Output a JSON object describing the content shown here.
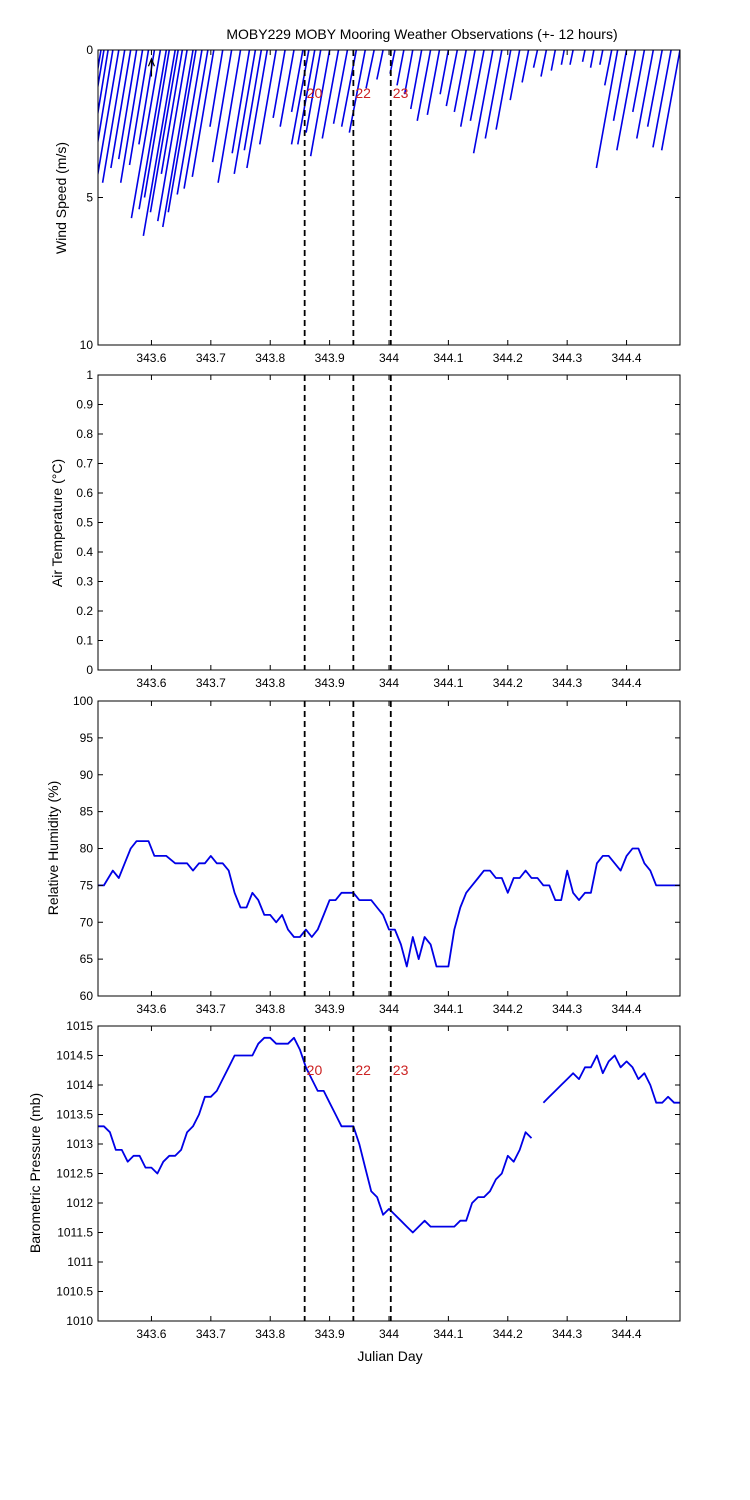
{
  "figure": {
    "title": "MOBY229 MOBY Mooring Weather Observations (+- 12 hours)",
    "marker_color": "#cc2222",
    "line_color": "#0000e6"
  },
  "chart_data": [
    {
      "type": "line",
      "title": "MOBY229 MOBY Mooring Weather Observations (+- 12 hours)",
      "plot_style": "wind-vector-sticks",
      "ylabel": "Wind Speed (m/s)",
      "xlabel": "",
      "xlim": [
        343.51,
        344.49
      ],
      "ylim": [
        0,
        10
      ],
      "y_reversed": true,
      "xticks": [
        "343.6",
        "343.7",
        "343.8",
        "343.9",
        "344",
        "344.1",
        "344.2",
        "344.3",
        "344.4"
      ],
      "yticks": [
        "0",
        "5",
        "10"
      ],
      "vertical_markers": [
        {
          "x": 343.858,
          "label": "20",
          "show_label": true
        },
        {
          "x": 343.94,
          "label": "22",
          "show_label": true
        },
        {
          "x": 344.003,
          "label": "23",
          "show_label": true
        }
      ],
      "series": [
        {
          "x": [
            343.515,
            343.52,
            343.527,
            343.535,
            343.545,
            343.555,
            343.565,
            343.575,
            343.585,
            343.595,
            343.605,
            343.615,
            343.625,
            343.63,
            343.64,
            343.645,
            343.652,
            343.66,
            343.67,
            343.675,
            343.685,
            343.695,
            343.705,
            343.72,
            343.735,
            343.75,
            343.765,
            343.775,
            343.785,
            343.795,
            343.81,
            343.825,
            343.84,
            343.855,
            343.865,
            343.875,
            343.885,
            343.9,
            343.915,
            343.93,
            343.945,
            343.96,
            343.975,
            343.99,
            344.01,
            344.025,
            344.04,
            344.055,
            344.07,
            344.085,
            344.1,
            344.115,
            344.13,
            344.145,
            344.16,
            344.175,
            344.19,
            344.205,
            344.22,
            344.235,
            344.25,
            344.265,
            344.28,
            344.295,
            344.31,
            344.33,
            344.345,
            344.36,
            344.375,
            344.385,
            344.4,
            344.415,
            344.43,
            344.445,
            344.46,
            344.475,
            344.49
          ],
          "u": [
            0.06,
            0.05,
            0.07,
            0.06,
            0.05,
            0.06,
            0.05,
            0.06,
            0.07,
            0.06,
            0.05,
            0.045,
            0.05,
            0.06,
            0.055,
            0.05,
            0.045,
            0.05,
            0.055,
            0.05,
            0.045,
            0.04,
            0.045,
            0.035,
            0.04,
            0.05,
            0.045,
            0.04,
            0.035,
            0.03,
            0.02,
            0.01,
            0.0,
            -0.005,
            -0.01,
            0.0,
            0.01,
            0.005,
            -0.01,
            -0.02,
            -0.03,
            -0.035,
            -0.04,
            -0.03,
            -0.02,
            -0.015,
            -0.005,
            -0.01,
            -0.02,
            -0.015,
            -0.01,
            -0.03,
            -0.025,
            -0.02,
            -0.03,
            -0.025,
            -0.02,
            -0.01,
            -0.015,
            -0.02,
            -0.025,
            -0.02,
            -0.01,
            -0.005,
            -0.015,
            -0.01,
            -0.005,
            -0.01,
            -0.02,
            0.0,
            -0.01,
            -0.02,
            -0.015,
            -0.02,
            -0.025,
            -0.02,
            -0.01
          ],
          "v": [
            4.6,
            4.3,
            4.1,
            3.8,
            4.6,
            4.5,
            4.0,
            3.7,
            4.5,
            3.9,
            3.2,
            5.7,
            5.4,
            5.0,
            6.3,
            5.5,
            4.2,
            5.8,
            6.0,
            5.5,
            4.9,
            4.7,
            4.3,
            2.6,
            3.8,
            4.5,
            3.5,
            4.2,
            3.4,
            4.0,
            3.2,
            2.3,
            2.6,
            2.1,
            3.2,
            3.2,
            2.8,
            3.6,
            3.0,
            2.5,
            2.6,
            2.8,
            1.3,
            1.0,
            0.8,
            1.2,
            1.5,
            2.0,
            2.4,
            2.2,
            1.5,
            1.9,
            2.1,
            2.6,
            2.4,
            3.5,
            3.0,
            2.7,
            1.7,
            1.1,
            0.6,
            0.9,
            0.7,
            0.5,
            0.5,
            0.4,
            0.6,
            0.5,
            1.2,
            4.0,
            2.4,
            3.4,
            2.1,
            3.0,
            2.6,
            3.3,
            3.4
          ]
        }
      ]
    },
    {
      "type": "line",
      "ylabel": "Air Temperature (°C)",
      "xlabel": "",
      "xlim": [
        343.51,
        344.49
      ],
      "ylim": [
        0,
        1
      ],
      "xticks": [
        "343.6",
        "343.7",
        "343.8",
        "343.9",
        "344",
        "344.1",
        "344.2",
        "344.3",
        "344.4"
      ],
      "yticks": [
        "0",
        "0.1",
        "0.2",
        "0.3",
        "0.4",
        "0.5",
        "0.6",
        "0.7",
        "0.8",
        "0.9",
        "1"
      ],
      "vertical_markers": [
        {
          "x": 343.858,
          "label": "",
          "show_label": false
        },
        {
          "x": 343.94,
          "label": "",
          "show_label": false
        },
        {
          "x": 344.003,
          "label": "",
          "show_label": false
        }
      ],
      "series": []
    },
    {
      "type": "line",
      "ylabel": "Relative Humidity (%)",
      "xlabel": "",
      "xlim": [
        343.51,
        344.49
      ],
      "ylim": [
        60,
        100
      ],
      "xticks": [
        "343.6",
        "343.7",
        "343.8",
        "343.9",
        "344",
        "344.1",
        "344.2",
        "344.3",
        "344.4"
      ],
      "yticks": [
        "60",
        "65",
        "70",
        "75",
        "80",
        "85",
        "90",
        "95",
        "100"
      ],
      "vertical_markers": [
        {
          "x": 343.858,
          "label": "",
          "show_label": false
        },
        {
          "x": 343.94,
          "label": "",
          "show_label": false
        },
        {
          "x": 344.003,
          "label": "",
          "show_label": false
        }
      ],
      "series": [
        {
          "x": [
            343.51,
            343.52,
            343.535,
            343.545,
            343.555,
            343.565,
            343.575,
            343.585,
            343.595,
            343.605,
            343.615,
            343.625,
            343.64,
            343.65,
            343.66,
            343.67,
            343.68,
            343.69,
            343.7,
            343.71,
            343.72,
            343.73,
            343.74,
            343.75,
            343.76,
            343.77,
            343.78,
            343.79,
            343.8,
            343.81,
            343.82,
            343.83,
            343.84,
            343.85,
            343.86,
            343.87,
            343.88,
            343.89,
            343.9,
            343.91,
            343.92,
            343.93,
            343.94,
            343.95,
            343.96,
            343.97,
            343.98,
            343.99,
            344.0,
            344.01,
            344.02,
            344.03,
            344.04,
            344.05,
            344.06,
            344.07,
            344.08,
            344.09,
            344.1,
            344.11,
            344.12,
            344.13,
            344.14,
            344.15,
            344.16,
            344.17,
            344.18,
            344.19,
            344.2,
            344.21,
            344.22,
            344.23,
            344.24,
            344.25,
            344.26,
            344.27,
            344.28,
            344.29,
            344.3,
            344.31,
            344.32,
            344.33,
            344.34,
            344.35,
            344.36,
            344.37,
            344.38,
            344.39,
            344.4,
            344.41,
            344.42,
            344.43,
            344.44,
            344.45,
            344.46,
            344.47,
            344.48,
            344.49
          ],
          "y": [
            75,
            75,
            77,
            76,
            78,
            80,
            81,
            81,
            81,
            79,
            79,
            79,
            78,
            78,
            78,
            77,
            78,
            78,
            79,
            78,
            78,
            77,
            74,
            72,
            72,
            74,
            73,
            71,
            71,
            70,
            71,
            69,
            68,
            68,
            69,
            68,
            69,
            71,
            73,
            73,
            74,
            74,
            74,
            73,
            73,
            73,
            72,
            71,
            69,
            69,
            67,
            64,
            68,
            65,
            68,
            67,
            64,
            64,
            64,
            69,
            72,
            74,
            75,
            76,
            77,
            77,
            76,
            76,
            74,
            76,
            76,
            77,
            76,
            76,
            75,
            75,
            73,
            73,
            77,
            74,
            73,
            74,
            74,
            78,
            79,
            79,
            78,
            77,
            79,
            80,
            80,
            78,
            77,
            75,
            75,
            75,
            75,
            75
          ]
        }
      ]
    },
    {
      "type": "line",
      "ylabel": "Barometric Pressure (mb)",
      "xlabel": "Julian Day",
      "xlim": [
        343.51,
        344.49
      ],
      "ylim": [
        1010,
        1015
      ],
      "xticks": [
        "343.6",
        "343.7",
        "343.8",
        "343.9",
        "344",
        "344.1",
        "344.2",
        "344.3",
        "344.4"
      ],
      "yticks": [
        "1010",
        "1010.5",
        "1011",
        "1011.5",
        "1012",
        "1012.5",
        "1013",
        "1013.5",
        "1014",
        "1014.5",
        "1015"
      ],
      "vertical_markers": [
        {
          "x": 343.858,
          "label": "20",
          "show_label": true
        },
        {
          "x": 343.94,
          "label": "22",
          "show_label": true
        },
        {
          "x": 344.003,
          "label": "23",
          "show_label": true
        }
      ],
      "series": [
        {
          "x": [
            343.51,
            343.52,
            343.53,
            343.54,
            343.55,
            343.56,
            343.57,
            343.58,
            343.59,
            343.6,
            343.61,
            343.62,
            343.63,
            343.64,
            343.65,
            343.66,
            343.67,
            343.68,
            343.69,
            343.7,
            343.71,
            343.72,
            343.73,
            343.74,
            343.75,
            343.76,
            343.77,
            343.78,
            343.79,
            343.8,
            343.81,
            343.82,
            343.83,
            343.84,
            343.85,
            343.86,
            343.87,
            343.88,
            343.89,
            343.9,
            343.91,
            343.92,
            343.93,
            343.94,
            343.95,
            343.96,
            343.97,
            343.98,
            343.99,
            344.0,
            344.01,
            344.02,
            344.03,
            344.04,
            344.05,
            344.06,
            344.07,
            344.08,
            344.09,
            344.1,
            344.11,
            344.12,
            344.13,
            344.14,
            344.15,
            344.16,
            344.17,
            344.18,
            344.19,
            344.2,
            344.21,
            344.22,
            344.23,
            344.24
          ],
          "y": [
            1013.3,
            1013.3,
            1013.2,
            1012.9,
            1012.9,
            1012.7,
            1012.8,
            1012.8,
            1012.6,
            1012.6,
            1012.5,
            1012.7,
            1012.8,
            1012.8,
            1012.9,
            1013.2,
            1013.3,
            1013.5,
            1013.8,
            1013.8,
            1013.9,
            1014.1,
            1014.3,
            1014.5,
            1014.5,
            1014.5,
            1014.5,
            1014.7,
            1014.8,
            1014.8,
            1014.7,
            1014.7,
            1014.7,
            1014.8,
            1014.6,
            1014.3,
            1014.1,
            1013.9,
            1013.9,
            1013.7,
            1013.5,
            1013.3,
            1013.3,
            1013.3,
            1013.0,
            1012.6,
            1012.2,
            1012.1,
            1011.8,
            1011.9,
            1011.8,
            1011.7,
            1011.6,
            1011.5,
            1011.6,
            1011.7,
            1011.6,
            1011.6,
            1011.6,
            1011.6,
            1011.6,
            1011.7,
            1011.7,
            1012.0,
            1012.1,
            1012.1,
            1012.2,
            1012.4,
            1012.5,
            1012.8,
            1012.7,
            1012.9,
            1013.2,
            1013.1
          ]
        },
        {
          "x": [
            344.26,
            344.27,
            344.28,
            344.29,
            344.3,
            344.31,
            344.32,
            344.33,
            344.34,
            344.35,
            344.36,
            344.37,
            344.38,
            344.39,
            344.4,
            344.41,
            344.42,
            344.43,
            344.44,
            344.45,
            344.46,
            344.47,
            344.48,
            344.49
          ],
          "y": [
            1013.7,
            1013.8,
            1013.9,
            1014.0,
            1014.1,
            1014.2,
            1014.1,
            1014.3,
            1014.3,
            1014.5,
            1014.2,
            1014.4,
            1014.5,
            1014.3,
            1014.4,
            1014.3,
            1014.1,
            1014.2,
            1014.0,
            1013.7,
            1013.7,
            1013.8,
            1013.7,
            1013.7
          ]
        }
      ]
    }
  ]
}
